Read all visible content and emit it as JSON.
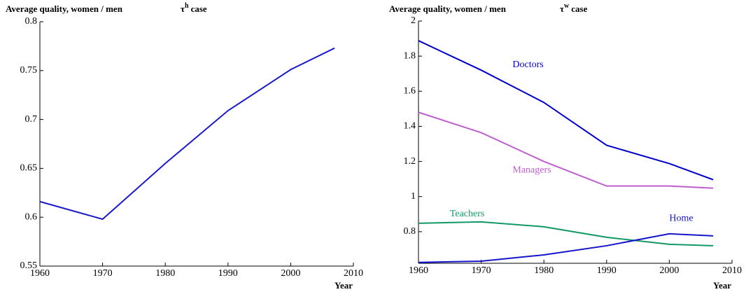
{
  "chart_data": [
    {
      "type": "line",
      "ylabel": "Average quality, women / men",
      "title_symbol": "τ",
      "title_sup": "h",
      "title_text": "case",
      "xlabel": "Year",
      "x": [
        1960,
        1970,
        1980,
        1990,
        2000,
        2007
      ],
      "series": [
        {
          "name": null,
          "color": "#1a1acc",
          "values": [
            0.616,
            0.598,
            0.655,
            0.709,
            0.751,
            0.773
          ]
        }
      ],
      "xlim": [
        1960,
        2010
      ],
      "xticks": [
        1960,
        1970,
        1980,
        1990,
        2000,
        2010
      ],
      "ylim": [
        0.55,
        0.8
      ],
      "yticks": [
        0.55,
        0.6,
        0.65,
        0.7,
        0.75,
        0.8
      ],
      "grid": false
    },
    {
      "type": "line",
      "ylabel": "Average quality, women / men",
      "title_symbol": "τ",
      "title_sup": "w",
      "title_text": "case",
      "xlabel": "Year",
      "x": [
        1960,
        1970,
        1980,
        1990,
        2000,
        2007
      ],
      "series": [
        {
          "name": "Doctors",
          "color": "#0000cc",
          "values": [
            1.888,
            1.72,
            1.536,
            1.292,
            1.188,
            1.096
          ]
        },
        {
          "name": "Managers",
          "color": "#bf5fcf",
          "values": [
            1.48,
            1.364,
            1.2,
            1.06,
            1.06,
            1.048
          ]
        },
        {
          "name": "Teachers",
          "color": "#119966",
          "values": [
            0.848,
            0.856,
            0.828,
            0.768,
            0.728,
            0.72
          ]
        },
        {
          "name": "Home",
          "color": "#1515cc",
          "values": [
            0.625,
            0.632,
            0.668,
            0.72,
            0.788,
            0.776
          ]
        }
      ],
      "xlim": [
        1960,
        2010
      ],
      "xticks": [
        1960,
        1970,
        1980,
        1990,
        2000,
        2010
      ],
      "ylim": [
        0.62,
        2
      ],
      "yticks": [
        0.8,
        1,
        1.2,
        1.4,
        1.6,
        1.8,
        2
      ],
      "grid": false
    }
  ]
}
